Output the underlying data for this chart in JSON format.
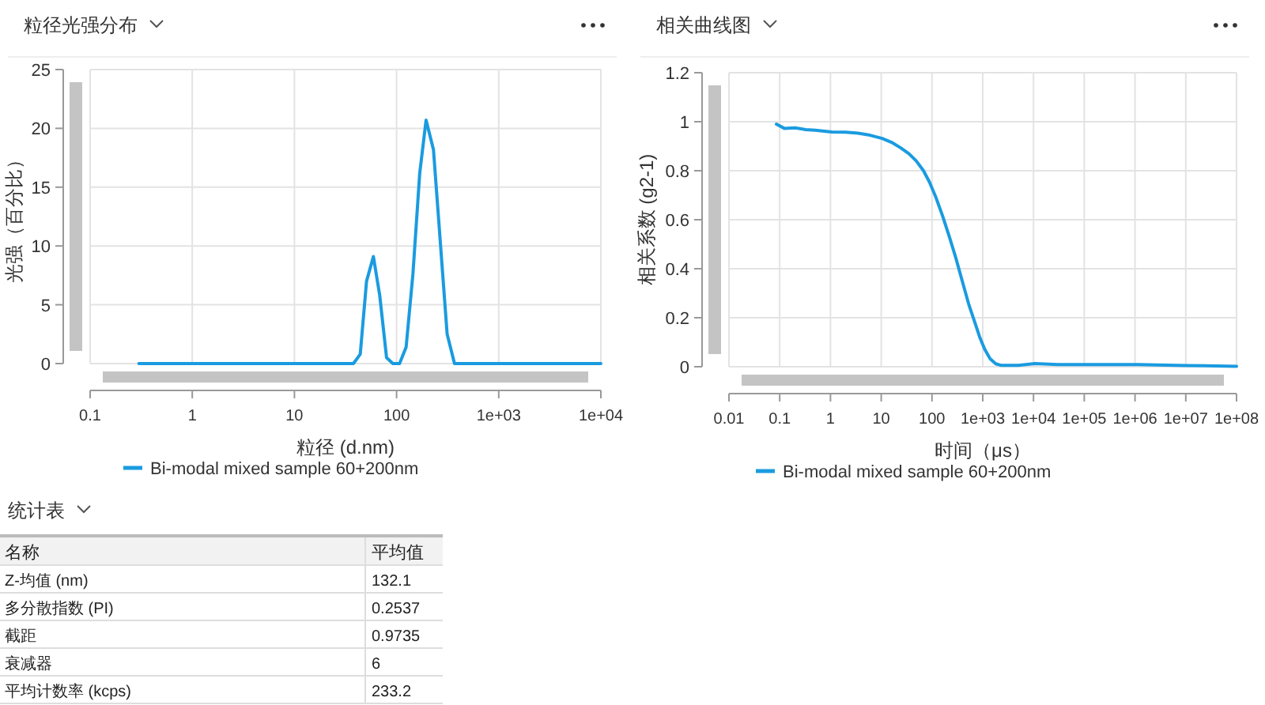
{
  "chart_data": [
    {
      "type": "line",
      "title": "粒径光强分布",
      "xlabel": "粒径 (d.nm)",
      "ylabel": "光强（百分比）",
      "log": "x",
      "grid": true,
      "legend": "bottom",
      "marker": "none",
      "line_style": "solid",
      "xlim": [
        0.1,
        10000
      ],
      "xticks": [
        0.1,
        1,
        10,
        100,
        {
          "value": 1000,
          "label": "1e+03"
        },
        {
          "value": 10000,
          "label": "1e+04"
        }
      ],
      "ylim": [
        0,
        25
      ],
      "yticks": [
        0,
        5,
        10,
        15,
        20,
        25
      ],
      "series": [
        {
          "name": "Bi-modal mixed sample 60+200nm",
          "color": "#1a9be0",
          "x": [
            0.3,
            37.8,
            44.1,
            50.8,
            59.3,
            68.4,
            79.8,
            92,
            107,
            124,
            144.5,
            168.6,
            194.5,
            229.6,
            312.6,
            369,
            10000
          ],
          "values": [
            0,
            0,
            0.8,
            7,
            9.1,
            5.8,
            0.5,
            0,
            0,
            1.4,
            7.6,
            16.2,
            20.7,
            18.2,
            2.5,
            0,
            0
          ]
        }
      ]
    },
    {
      "type": "line",
      "title": "相关曲线图",
      "xlabel": "时间（μs）",
      "ylabel": "相关系数 (g2-1)",
      "log": "x",
      "grid": true,
      "legend": "bottom",
      "marker": "none",
      "line_style": "solid",
      "xlim": [
        0.01,
        100000000
      ],
      "xticks": [
        0.01,
        0.1,
        1,
        10,
        100,
        {
          "value": 1000,
          "label": "1e+03"
        },
        {
          "value": 10000,
          "label": "1e+04"
        },
        {
          "value": 100000,
          "label": "1e+05"
        },
        {
          "value": 1000000,
          "label": "1e+06"
        },
        {
          "value": 10000000,
          "label": "1e+07"
        },
        {
          "value": 100000000,
          "label": "1e+08"
        }
      ],
      "ylim": [
        0,
        1.2
      ],
      "yticks": [
        0,
        0.2,
        0.4,
        0.6,
        0.8,
        1,
        1.2
      ],
      "series": [
        {
          "name": "Bi-modal mixed sample 60+200nm",
          "color": "#1a9be0",
          "x": [
            0.086,
            0.123,
            0.2,
            0.32,
            0.5,
            1.06,
            2,
            3.5,
            6,
            10.4,
            16,
            23.9,
            35,
            49,
            68,
            89,
            120,
            162,
            220,
            295,
            400,
            537,
            700,
            867,
            1100,
            1400,
            1800,
            2260,
            5000,
            10700,
            30000,
            104000,
            1140000,
            10000000,
            100000000
          ],
          "values": [
            0.99,
            0.973,
            0.975,
            0.968,
            0.965,
            0.958,
            0.957,
            0.953,
            0.945,
            0.932,
            0.916,
            0.894,
            0.87,
            0.84,
            0.8,
            0.754,
            0.69,
            0.615,
            0.53,
            0.444,
            0.345,
            0.251,
            0.18,
            0.122,
            0.07,
            0.032,
            0.012,
            0.006,
            0.006,
            0.013,
            0.009,
            0.009,
            0.009,
            0.005,
            0.002
          ]
        }
      ]
    },
    {
      "type": "other",
      "title": "统计表",
      "annotations": [
        "名称",
        "平均值",
        "Z-均值 (nm)",
        "132.1",
        "多分散指数 (PI)",
        "0.2537",
        "截距",
        "0.9735",
        "衰减器",
        "6",
        "平均计数率 (kcps)",
        "233.2"
      ]
    }
  ]
}
